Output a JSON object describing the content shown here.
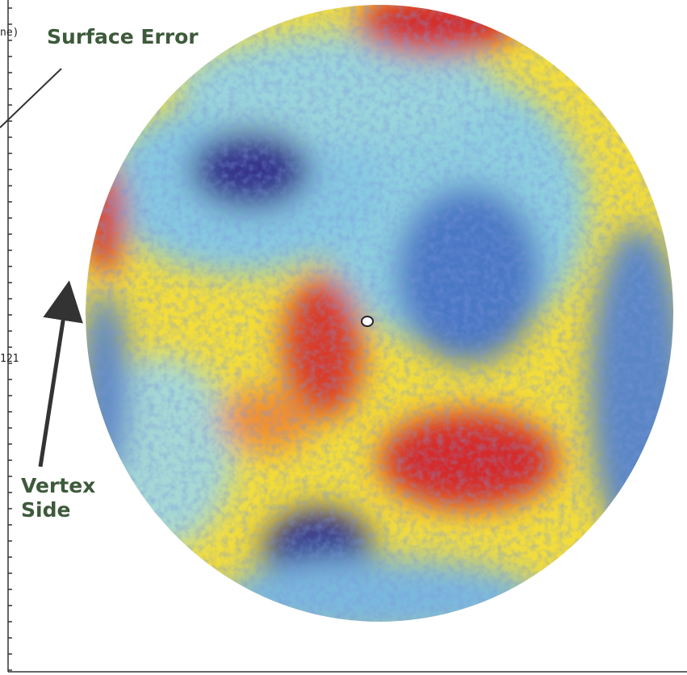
{
  "header": {
    "cutoff_text": "ne)",
    "title": "Surface Error"
  },
  "axis": {
    "tick_label": "121"
  },
  "annotation": {
    "lines": [
      "Vertex",
      "Side"
    ]
  }
}
